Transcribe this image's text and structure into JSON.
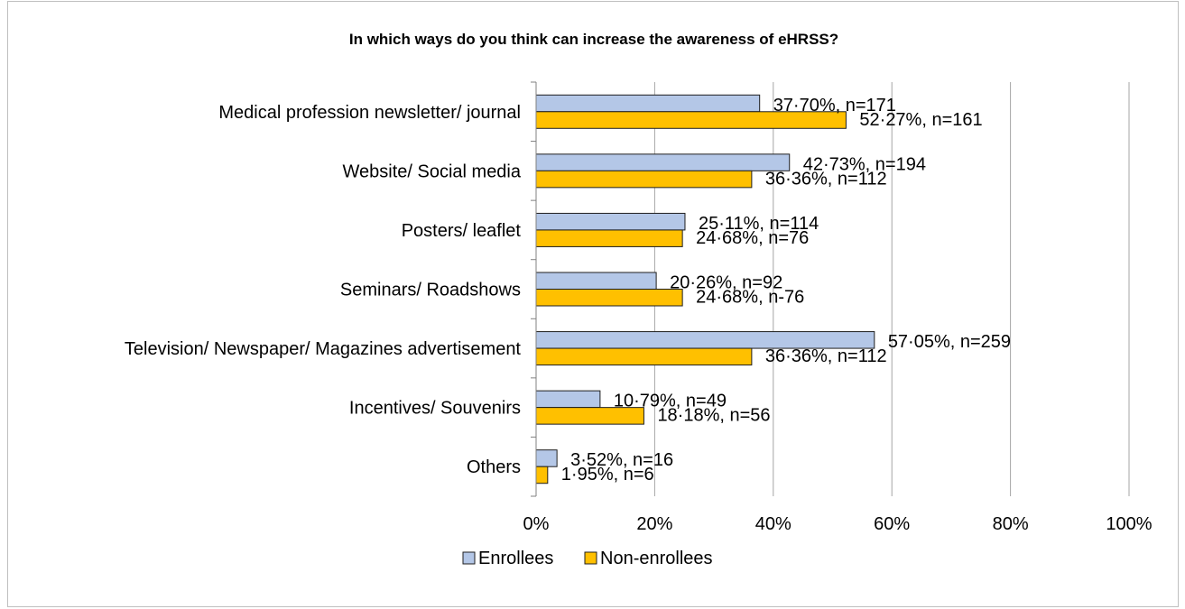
{
  "chart_data": {
    "type": "bar",
    "orientation": "horizontal",
    "title": "In which ways do you think can increase the awareness of eHRSS?",
    "categories": [
      "Medical profession newsletter/ journal",
      "Website/ Social media",
      "Posters/ leaflet",
      "Seminars/ Roadshows",
      "Television/ Newspaper/ Magazines advertisement",
      "Incentives/ Souvenirs",
      "Others"
    ],
    "series": [
      {
        "name": "Enrollees",
        "color": "#b4c7e7",
        "values": [
          37.7,
          42.73,
          25.11,
          20.26,
          57.05,
          10.79,
          3.52
        ],
        "labels": [
          "37·70%, n=171",
          "42·73%, n=194",
          "25·11%, n=114",
          "20·26%, n=92",
          "57·05%, n=259",
          "10·79%, n=49",
          "3·52%, n=16"
        ]
      },
      {
        "name": "Non-enrollees",
        "color": "#ffc000",
        "values": [
          52.27,
          36.36,
          24.68,
          24.68,
          36.36,
          18.18,
          1.95
        ],
        "labels": [
          "52·27%, n=161",
          "36·36%, n=112",
          "24·68%, n=76",
          "24·68%, n-76",
          "36·36%, n=112",
          "18·18%, n=56",
          "1·95%, n=6"
        ]
      }
    ],
    "xlim": [
      0,
      100
    ],
    "xticks": [
      "0%",
      "20%",
      "40%",
      "60%",
      "80%",
      "100%"
    ],
    "grid": "vertical",
    "legend": "bottom"
  }
}
